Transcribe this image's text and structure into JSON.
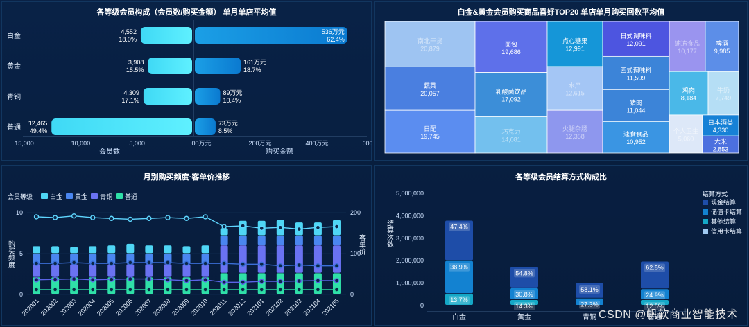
{
  "panels": {
    "p1_title": "各等级会员构成（会员数/购买金额）    单月单店平均值",
    "p2_title": "白金&黄金会员购买商品喜好TOP20    单店单月购买回数平均值",
    "p3_title": "月别购买频度·客单价推移",
    "p4_title": "各等级会员结算方式构成比"
  },
  "watermark": "CSDN @帆软商业智能技术",
  "chart_data": [
    {
      "type": "bar",
      "orientation": "horizontal-butterfly",
      "categories": [
        "白金",
        "黄金",
        "青铜",
        "普通"
      ],
      "series": [
        {
          "name": "会员数",
          "values": [
            4552,
            3908,
            4309,
            12465
          ],
          "shares": [
            "18.0%",
            "15.5%",
            "17.1%",
            "49.4%"
          ],
          "labels": [
            "4,552",
            "3,908",
            "4,309",
            "12,465"
          ]
        },
        {
          "name": "购买金额",
          "values": [
            536,
            161,
            89,
            73
          ],
          "shares": [
            "62.4%",
            "18.7%",
            "10.4%",
            "8.5%"
          ],
          "labels": [
            "536万元",
            "161万元",
            "89万元",
            "73万元"
          ]
        }
      ],
      "left_ticks": [
        "15,000",
        "10,000",
        "5,000",
        "0"
      ],
      "right_ticks": [
        "0万元",
        "200万元",
        "400万元",
        "600万元"
      ],
      "left_xlim": [
        0,
        15000
      ],
      "right_xlim": [
        0,
        600
      ],
      "left_xlabel": "会员数",
      "right_xlabel": "购买金额",
      "colors": {
        "left_start": "#3fd9f5",
        "left_end": "#5ff0ff",
        "right_start": "#1b9fe6",
        "right_end": "#0b7ad0"
      }
    },
    {
      "type": "heatmap",
      "subtype": "treemap",
      "items": [
        {
          "name": "南北干货",
          "value": "20,879",
          "color": "#9ec4f2",
          "fade": true
        },
        {
          "name": "蔬菜",
          "value": "20,057",
          "color": "#4a7fe0",
          "fade": false
        },
        {
          "name": "日配",
          "value": "19,745",
          "color": "#5b8df0",
          "fade": false
        },
        {
          "name": "面包",
          "value": "19,686",
          "color": "#5e70ea",
          "fade": false
        },
        {
          "name": "乳酸菌饮品",
          "value": "17,092",
          "color": "#3c8ed8",
          "fade": false
        },
        {
          "name": "巧克力",
          "value": "14,081",
          "color": "#73c0ee",
          "fade": true
        },
        {
          "name": "点心糖果",
          "value": "12,991",
          "color": "#1596d8",
          "fade": false
        },
        {
          "name": "水产",
          "value": "12,615",
          "color": "#a4c6f5",
          "fade": true
        },
        {
          "name": "火腿杂肠",
          "value": "12,358",
          "color": "#8e97ee",
          "fade": true
        },
        {
          "name": "日式调味料",
          "value": "12,091",
          "color": "#4d55e0",
          "fade": false
        },
        {
          "name": "西式调味料",
          "value": "11,509",
          "color": "#3c84d8",
          "fade": false
        },
        {
          "name": "猪肉",
          "value": "11,044",
          "color": "#3c84d8",
          "fade": false
        },
        {
          "name": "速食食品",
          "value": "10,952",
          "color": "#3a95e3",
          "fade": false
        },
        {
          "name": "速冻食品",
          "value": "10,177",
          "color": "#9a94ef",
          "fade": true
        },
        {
          "name": "啤酒",
          "value": "9,985",
          "color": "#5c8ee8",
          "fade": false
        },
        {
          "name": "鸡肉",
          "value": "8,184",
          "color": "#4ab8e8",
          "fade": false
        },
        {
          "name": "牛奶",
          "value": "7,749",
          "color": "#b5def5",
          "fade": true
        },
        {
          "name": "个人卫生",
          "value": "5,060",
          "color": "#dde8f8",
          "fade": true
        },
        {
          "name": "日本酒类",
          "value": "4,330",
          "color": "#1681d6",
          "fade": false
        },
        {
          "name": "大米",
          "value": "2,853",
          "color": "#4c70df",
          "fade": false
        }
      ]
    },
    {
      "type": "bar",
      "subtype": "stacked-bar-with-lines",
      "categories": [
        "202001",
        "202002",
        "202003",
        "202004",
        "202005",
        "202006",
        "202007",
        "202008",
        "202009",
        "202010",
        "202011",
        "202012",
        "202101",
        "202102",
        "202103",
        "202104",
        "202105"
      ],
      "legend_title": "会员等级",
      "legend": [
        "白金",
        "黄金",
        "青铜",
        "普通"
      ],
      "colors": {
        "白金": "#4fd6f5",
        "黄金": "#4a86f0",
        "青铜": "#6a72f2",
        "普通": "#2fe0a8"
      },
      "series": [
        {
          "name": "普通",
          "values": [
            2.1,
            2.1,
            2.1,
            2.1,
            2.1,
            2.1,
            2.1,
            2.1,
            2.1,
            2.1,
            2.6,
            2.6,
            2.6,
            2.6,
            2.6,
            2.6,
            2.6
          ]
        },
        {
          "name": "青铜",
          "values": [
            1.6,
            1.6,
            1.6,
            1.6,
            1.6,
            1.6,
            1.6,
            1.6,
            1.6,
            1.6,
            3.4,
            3.4,
            3.4,
            3.4,
            3.4,
            3.4,
            3.4
          ]
        },
        {
          "name": "黄金",
          "values": [
            1.3,
            1.3,
            1.3,
            1.3,
            1.3,
            1.3,
            1.3,
            1.3,
            1.3,
            1.3,
            1.2,
            1.2,
            1.2,
            1.2,
            1.2,
            1.2,
            1.2
          ]
        },
        {
          "name": "白金",
          "values": [
            0.9,
            0.9,
            0.8,
            0.9,
            1.0,
            1.2,
            1.0,
            1.0,
            0.9,
            1.0,
            0.9,
            1.8,
            1.8,
            1.9,
            1.6,
            1.6,
            1.9
          ]
        }
      ],
      "price_lines": [
        {
          "name": "白金",
          "values": [
            190,
            188,
            192,
            188,
            186,
            184,
            186,
            188,
            186,
            190,
            166,
            168,
            162,
            164,
            160,
            164,
            166
          ]
        },
        {
          "name": "黄金",
          "values": [
            76,
            76,
            78,
            76,
            76,
            78,
            78,
            78,
            76,
            76,
            76,
            74,
            74,
            70,
            72,
            70,
            70
          ]
        },
        {
          "name": "青铜",
          "values": [
            36,
            37,
            38,
            36,
            37,
            38,
            38,
            36,
            34,
            36,
            30,
            30,
            32,
            32,
            33,
            34,
            34
          ]
        },
        {
          "name": "普通",
          "values": [
            12,
            12,
            12,
            12,
            12,
            12,
            12,
            12,
            12,
            12,
            12,
            12,
            12,
            12,
            12,
            12,
            12
          ]
        }
      ],
      "ylabel": "购买频度",
      "y2label": "客单价",
      "ylim": [
        0,
        10
      ],
      "y2lim": [
        0,
        200
      ],
      "yticks": [
        "0",
        "5",
        "10"
      ],
      "y2ticks": [
        "0",
        "100",
        "200"
      ]
    },
    {
      "type": "bar",
      "subtype": "stacked",
      "categories": [
        "白金",
        "黄金",
        "青铜",
        "普通"
      ],
      "ylabel": "结算次数",
      "ylim": [
        0,
        5000000
      ],
      "yticks": [
        "0",
        "1,000,000",
        "2,000,000",
        "3,000,000",
        "4,000,000",
        "5,000,000"
      ],
      "legend_title": "结算方式",
      "legend": [
        "现金结算",
        "储值卡结算",
        "其他结算",
        "信用卡结算"
      ],
      "colors": {
        "现金结算": "#1e4da8",
        "储值卡结算": "#1382d1",
        "其他结算": "#15a8c7",
        "信用卡结算": "#9fc9f0"
      },
      "totals": [
        3780000,
        1720000,
        1160000,
        1960000
      ],
      "series": [
        {
          "name": "其他结算",
          "shares": [
            13.7,
            14.3,
            0,
            12.5
          ],
          "labels": [
            "13.7%",
            "14.3%",
            "",
            "12.5%"
          ]
        },
        {
          "name": "储值卡结算",
          "shares": [
            38.9,
            30.8,
            27.3,
            24.9
          ],
          "labels": [
            "38.9%",
            "30.8%",
            "27.3%",
            "24.9%"
          ]
        },
        {
          "name": "现金结算",
          "shares": [
            47.4,
            54.8,
            58.1,
            62.5
          ],
          "labels": [
            "47.4%",
            "54.8%",
            "58.1%",
            "62.5%"
          ]
        }
      ]
    }
  ]
}
